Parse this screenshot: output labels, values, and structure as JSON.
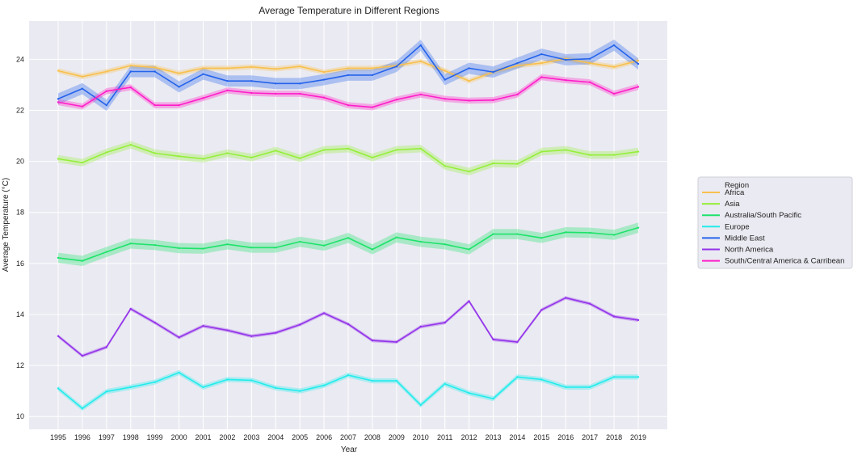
{
  "chart_data": {
    "type": "line",
    "title": "Average Temperature in Different Regions",
    "xlabel": "Year",
    "ylabel": "Average Temperature (°C)",
    "x": [
      1995,
      1996,
      1997,
      1998,
      1999,
      2000,
      2001,
      2002,
      2003,
      2004,
      2005,
      2006,
      2007,
      2008,
      2009,
      2010,
      2011,
      2012,
      2013,
      2014,
      2015,
      2016,
      2017,
      2018,
      2019
    ],
    "ylim": [
      9.5,
      25.5
    ],
    "yticks": [
      10,
      12,
      14,
      16,
      18,
      20,
      22,
      24
    ],
    "grid": true,
    "legend": {
      "title": "Region",
      "placement": "right"
    },
    "series": [
      {
        "name": "Africa",
        "color": "#f8c04e",
        "band": 0.1,
        "values": [
          23.55,
          23.32,
          23.52,
          23.75,
          23.68,
          23.45,
          23.65,
          23.65,
          23.7,
          23.62,
          23.72,
          23.5,
          23.65,
          23.65,
          23.75,
          23.92,
          23.55,
          23.15,
          23.5,
          23.75,
          23.85,
          24.02,
          23.85,
          23.7,
          23.95
        ]
      },
      {
        "name": "Asia",
        "color": "#95ee3a",
        "band": 0.15,
        "values": [
          20.1,
          19.95,
          20.35,
          20.65,
          20.32,
          20.2,
          20.1,
          20.32,
          20.15,
          20.42,
          20.12,
          20.45,
          20.5,
          20.15,
          20.45,
          20.5,
          19.82,
          19.6,
          19.92,
          19.9,
          20.38,
          20.45,
          20.25,
          20.25,
          20.38
        ]
      },
      {
        "name": "Australia/South Pacific",
        "color": "#1de36a",
        "band": 0.2,
        "values": [
          16.22,
          16.1,
          16.45,
          16.78,
          16.72,
          16.6,
          16.58,
          16.75,
          16.62,
          16.62,
          16.85,
          16.7,
          17.0,
          16.55,
          17.02,
          16.85,
          16.75,
          16.55,
          17.15,
          17.15,
          17.0,
          17.22,
          17.2,
          17.12,
          17.4
        ]
      },
      {
        "name": "Europe",
        "color": "#22ecec",
        "band": 0.1,
        "values": [
          11.1,
          10.32,
          10.98,
          11.15,
          11.35,
          11.72,
          11.15,
          11.45,
          11.42,
          11.12,
          11.0,
          11.22,
          11.62,
          11.4,
          11.4,
          10.45,
          11.28,
          10.92,
          10.7,
          11.55,
          11.45,
          11.15,
          11.15,
          11.55,
          11.55
        ]
      },
      {
        "name": "Middle East",
        "color": "#2563eb",
        "band": 0.22,
        "values": [
          22.45,
          22.85,
          22.2,
          23.52,
          23.52,
          22.92,
          23.42,
          23.15,
          23.15,
          23.05,
          23.05,
          23.2,
          23.38,
          23.38,
          23.72,
          24.55,
          23.2,
          23.65,
          23.5,
          23.85,
          24.2,
          23.98,
          24.02,
          24.55,
          23.82
        ]
      },
      {
        "name": "North America",
        "color": "#9333ea",
        "band": 0.07,
        "values": [
          13.15,
          12.38,
          12.72,
          14.22,
          13.68,
          13.1,
          13.55,
          13.38,
          13.15,
          13.28,
          13.6,
          14.05,
          13.62,
          12.98,
          12.92,
          13.52,
          13.68,
          14.52,
          13.02,
          12.92,
          14.18,
          14.65,
          14.42,
          13.92,
          13.78
        ]
      },
      {
        "name": "South/Central America & Carribean",
        "color": "#ff1ec8",
        "band": 0.12,
        "values": [
          22.32,
          22.15,
          22.75,
          22.9,
          22.2,
          22.2,
          22.48,
          22.78,
          22.68,
          22.65,
          22.65,
          22.5,
          22.2,
          22.12,
          22.42,
          22.62,
          22.45,
          22.38,
          22.4,
          22.62,
          23.3,
          23.18,
          23.1,
          22.65,
          22.92
        ]
      }
    ]
  }
}
